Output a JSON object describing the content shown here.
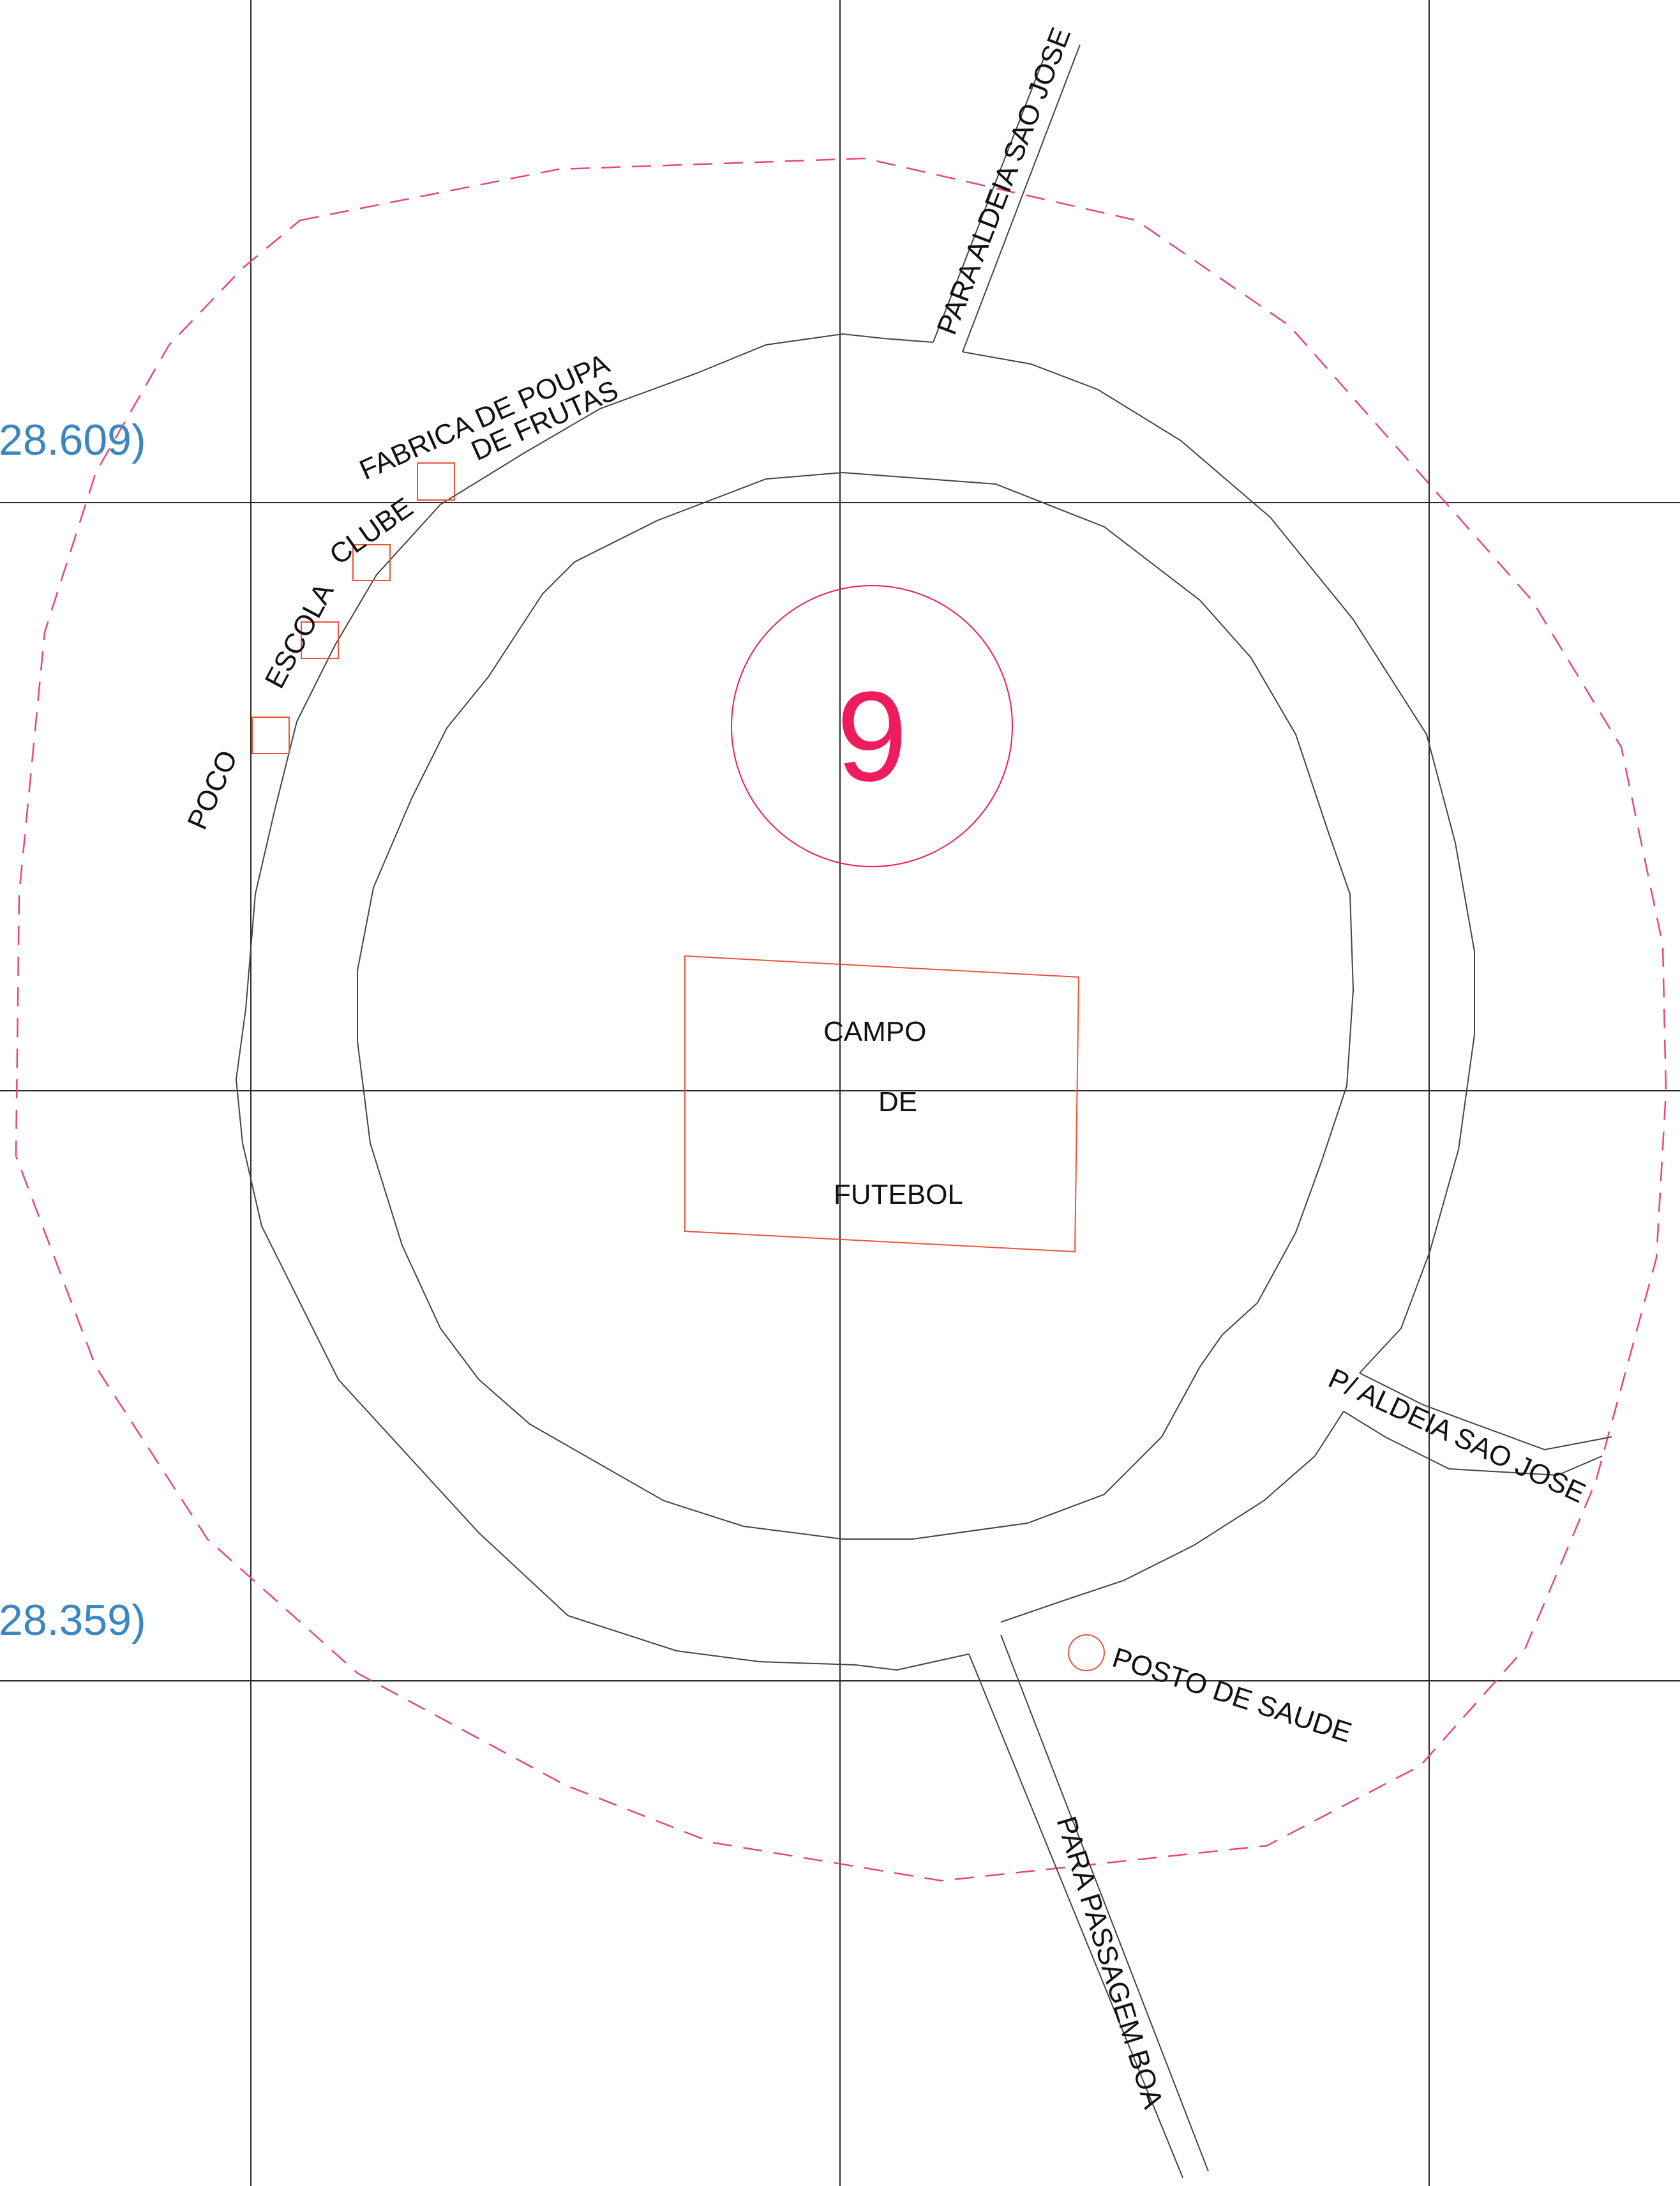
{
  "map": {
    "village_number": "9",
    "coordinate_labels": {
      "upper": "28.609)",
      "lower": "28.359)"
    },
    "labels": {
      "road_north": "PARA ALDEIA SAO JOSE",
      "factory_line1": "FABRICA DE POUPA",
      "factory_line2": "DE FRUTAS",
      "club": "CLUBE",
      "school": "ESCOLA",
      "well": "POCO",
      "field_line1": "CAMPO",
      "field_line2": "DE",
      "field_line3": "FUTEBOL",
      "road_east": "P/ ALDEIA SAO JOSE",
      "health_post": "POSTO DE SAUDE",
      "road_south": "PARA PASSAGEM BOA"
    },
    "colors": {
      "boundary": "#e8457a",
      "feature": "#e8553a",
      "village_number": "#ee1c5c",
      "coordinate_text": "#3a86c0",
      "lines": "#444444"
    }
  }
}
